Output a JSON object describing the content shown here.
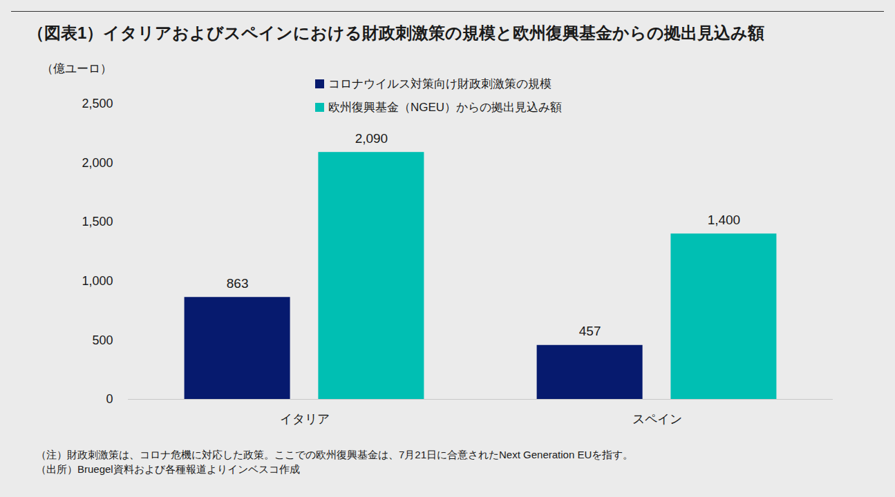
{
  "chart_data": {
    "type": "bar",
    "title": "（図表1）イタリアおよびスペインにおける財政刺激策の規模と欧州復興基金からの拠出見込み額",
    "y_label": "（億ユーロ）",
    "categories": [
      "イタリア",
      "スペイン"
    ],
    "series": [
      {
        "name": "コロナウイルス対策向け財政刺激策の規模",
        "color": "#061a6e",
        "values": [
          863,
          457
        ]
      },
      {
        "name": "欧州復興基金（NGEU）からの拠出見込み額",
        "color": "#00bfb3",
        "values": [
          2090,
          1400
        ],
        "value_labels": [
          "2,090",
          "1,400"
        ]
      }
    ],
    "ylim": [
      0,
      2500
    ],
    "yticks": [
      0,
      500,
      {
        "value": 1000,
        "label": "1,000"
      },
      {
        "value": 1500,
        "label": "1,500"
      },
      {
        "value": 2000,
        "label": "2,000"
      },
      {
        "value": 2500,
        "label": "2,500"
      }
    ],
    "grid": false,
    "legend": "top",
    "data_labels": true,
    "notes": [
      "（注）財政刺激策は、コロナ危機に対応した政策。ここでの欧州復興基金は、7月21日に合意されたNext Generation EUを指す。",
      "（出所）Bruegel資料および各種報道よりインベスコ作成"
    ]
  }
}
